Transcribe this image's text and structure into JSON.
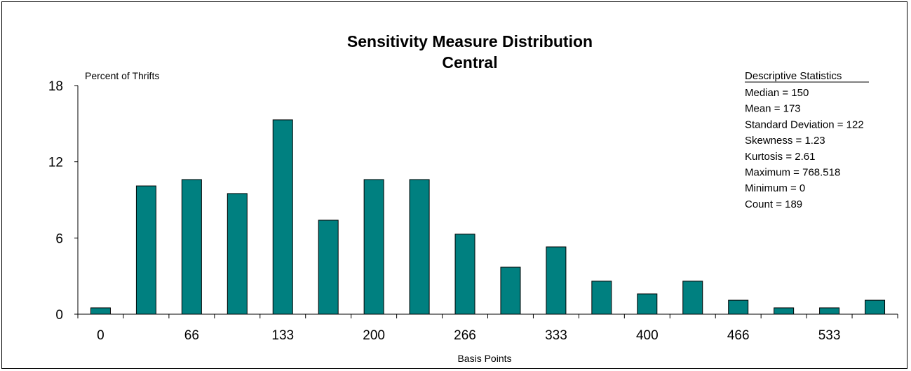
{
  "chart_data": {
    "type": "bar",
    "title": "Sensitivity Measure Distribution",
    "subtitle": "Central",
    "ylabel": "Percent of Thrifts",
    "xlabel": "Basis Points",
    "ylim": [
      0,
      18
    ],
    "yticks": [
      0,
      6,
      12,
      18
    ],
    "xtick_labels": [
      "0",
      "66",
      "133",
      "200",
      "266",
      "333",
      "400",
      "466",
      "533"
    ],
    "values": [
      0.5,
      10.1,
      10.6,
      9.5,
      15.3,
      7.4,
      10.6,
      10.6,
      6.3,
      3.7,
      5.3,
      2.6,
      1.6,
      2.6,
      1.1,
      0.5,
      0.5,
      1.1
    ],
    "bar_color": "#008080",
    "grid": false,
    "legend": "none"
  },
  "stats": {
    "heading": "Descriptive Statistics",
    "lines": [
      "Median = 150",
      "Mean = 173",
      "Standard Deviation = 122",
      "Skewness = 1.23",
      "Kurtosis = 2.61",
      "Maximum = 768.518",
      "Minimum = 0",
      "Count = 189"
    ]
  }
}
